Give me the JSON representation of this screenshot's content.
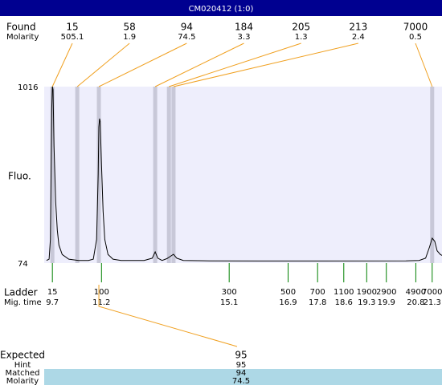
{
  "title": "CM020412 (1:0)",
  "found": {
    "label": "Found",
    "molarity_label": "Molarity",
    "peaks": [
      {
        "size": 15,
        "molarity": 505.1,
        "mig_time": 9.7
      },
      {
        "size": 58,
        "molarity": 1.9,
        "mig_time": 10.46
      },
      {
        "size": 94,
        "molarity": 74.5,
        "mig_time": 11.12
      },
      {
        "size": 184,
        "molarity": 3.3,
        "mig_time": 12.84
      },
      {
        "size": 205,
        "molarity": 1.3,
        "mig_time": 13.26
      },
      {
        "size": 213,
        "molarity": 2.4,
        "mig_time": 13.4
      },
      {
        "size": 7000,
        "molarity": 0.5,
        "mig_time": 21.3
      }
    ]
  },
  "plot": {
    "y_label": "Fluo.",
    "ylim": [
      74,
      1016
    ],
    "yticks": [
      74,
      1016
    ],
    "xlim": [
      9.45,
      21.6
    ],
    "trace": {
      "x": [
        9.52,
        9.6,
        9.64,
        9.68,
        9.7,
        9.72,
        9.75,
        9.8,
        9.85,
        9.9,
        10.0,
        10.2,
        10.5,
        10.8,
        10.95,
        11.05,
        11.1,
        11.12,
        11.14,
        11.16,
        11.2,
        11.25,
        11.3,
        11.4,
        11.55,
        11.8,
        12.5,
        12.75,
        12.84,
        12.92,
        13.05,
        13.2,
        13.4,
        13.5,
        13.7,
        14.5,
        16,
        18,
        20.5,
        20.9,
        21.1,
        21.22,
        21.3,
        21.38,
        21.45,
        21.55,
        21.6
      ],
      "y": [
        88,
        95,
        200,
        900,
        1016,
        1000,
        700,
        400,
        250,
        170,
        120,
        95,
        88,
        88,
        95,
        200,
        550,
        800,
        845,
        830,
        600,
        350,
        200,
        120,
        95,
        88,
        88,
        100,
        134,
        100,
        88,
        98,
        121,
        100,
        88,
        86,
        85,
        85,
        86,
        88,
        100,
        160,
        207,
        190,
        140,
        120,
        115
      ]
    }
  },
  "ladder": {
    "label": "Ladder",
    "mig_label": "Mig. time",
    "sizes": [
      15,
      100,
      300,
      500,
      700,
      1100,
      1900,
      2900,
      4900,
      7000
    ],
    "mig_times": [
      9.7,
      11.2,
      15.1,
      16.9,
      17.8,
      18.6,
      19.3,
      19.9,
      20.8,
      21.3
    ]
  },
  "expected": {
    "label": "Expected",
    "value": 95,
    "hint_label": "Hint",
    "hint": 95,
    "matched_label": "Matched",
    "matched": 94,
    "molarity_label": "Molarity",
    "molarity": 74.5
  }
}
